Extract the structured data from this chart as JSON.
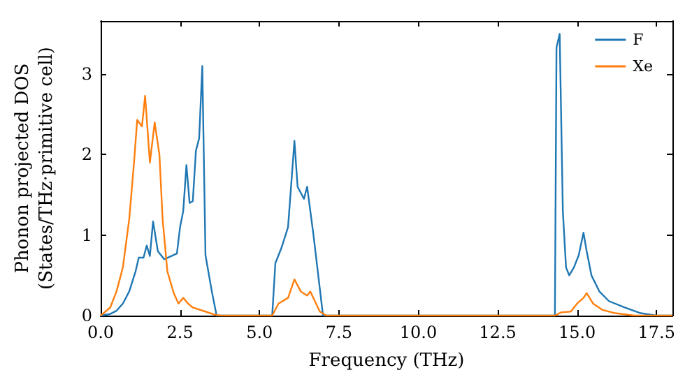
{
  "chart_data": {
    "type": "line",
    "xlabel": "Frequency (THz)",
    "ylabel": "Phonon projected DOS\n(States/THz·primitive cell)",
    "xlim": [
      0,
      18
    ],
    "ylim": [
      0,
      3.66
    ],
    "xticks": [
      {
        "value": 0,
        "label": "0.0"
      },
      {
        "value": 2.5,
        "label": "2.5"
      },
      {
        "value": 5,
        "label": "5.0"
      },
      {
        "value": 7.5,
        "label": "7.5"
      },
      {
        "value": 10,
        "label": "10.0"
      },
      {
        "value": 12.5,
        "label": "12.5"
      },
      {
        "value": 15,
        "label": "15.0"
      },
      {
        "value": 17.5,
        "label": "17.5"
      }
    ],
    "yticks": [
      0,
      1,
      2,
      3
    ],
    "grid": false,
    "legend": "top right",
    "marker": "none",
    "line_style": "solid",
    "series": [
      {
        "name": "F",
        "color": "#1f77b4",
        "x": [
          0,
          0.3,
          0.5,
          0.7,
          0.9,
          1.1,
          1.2,
          1.35,
          1.45,
          1.55,
          1.65,
          1.8,
          2.0,
          2.4,
          2.5,
          2.6,
          2.7,
          2.8,
          2.9,
          3.0,
          3.1,
          3.2,
          3.3,
          3.5,
          3.65,
          5.4,
          5.5,
          5.7,
          5.9,
          6.1,
          6.2,
          6.4,
          6.5,
          6.7,
          7.0,
          14.3,
          14.35,
          14.45,
          14.55,
          14.65,
          14.75,
          14.9,
          15.05,
          15.2,
          15.3,
          15.45,
          15.7,
          16.0,
          16.5,
          17.0,
          17.5,
          18
        ],
        "values": [
          0,
          0.02,
          0.06,
          0.15,
          0.3,
          0.55,
          0.72,
          0.72,
          0.87,
          0.74,
          1.17,
          0.8,
          0.7,
          0.77,
          1.1,
          1.3,
          1.87,
          1.4,
          1.42,
          2.05,
          2.2,
          3.1,
          0.75,
          0.3,
          0,
          0,
          0.65,
          0.85,
          1.1,
          2.17,
          1.6,
          1.45,
          1.6,
          1.0,
          0,
          0,
          3.33,
          3.5,
          1.3,
          0.6,
          0.5,
          0.6,
          0.75,
          1.03,
          0.8,
          0.5,
          0.3,
          0.18,
          0.1,
          0.03,
          0,
          0
        ]
      },
      {
        "name": "Xe",
        "color": "#ff7f0e",
        "x": [
          0,
          0.3,
          0.5,
          0.7,
          0.9,
          1.05,
          1.15,
          1.3,
          1.4,
          1.55,
          1.7,
          1.85,
          1.95,
          2.1,
          2.3,
          2.45,
          2.6,
          2.75,
          2.9,
          3.3,
          3.6,
          3.8,
          5.4,
          5.6,
          5.9,
          6.1,
          6.3,
          6.5,
          6.6,
          6.9,
          7.1,
          14.3,
          14.5,
          14.8,
          15.0,
          15.2,
          15.3,
          15.5,
          15.8,
          16.2,
          16.8,
          18
        ],
        "values": [
          0,
          0.1,
          0.3,
          0.6,
          1.2,
          1.9,
          2.43,
          2.35,
          2.73,
          1.9,
          2.4,
          2.0,
          1.2,
          0.55,
          0.28,
          0.15,
          0.22,
          0.15,
          0.1,
          0.05,
          0.01,
          0,
          0,
          0.15,
          0.22,
          0.45,
          0.3,
          0.25,
          0.3,
          0.05,
          0,
          0,
          0.04,
          0.05,
          0.15,
          0.22,
          0.28,
          0.15,
          0.07,
          0.03,
          0,
          0
        ]
      }
    ]
  }
}
